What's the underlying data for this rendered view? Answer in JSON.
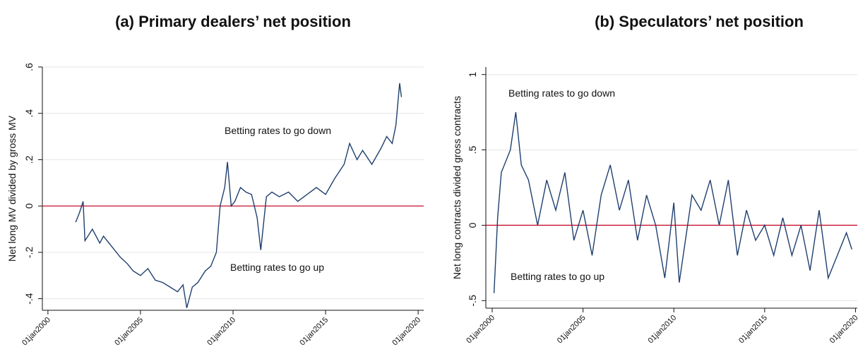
{
  "chart_data": [
    {
      "type": "line",
      "title": "(a) Primary dealers’ net position",
      "y_label": "Net long MV divided by gross MV",
      "annotations": [
        "Betting rates to go down",
        "Betting rates to go up"
      ],
      "hline": 0,
      "hline_color": "#c8102e",
      "xlim": [
        1999.7,
        2020.3
      ],
      "xticks": [
        {
          "value": 2000,
          "label": "01jan2000"
        },
        {
          "value": 2005,
          "label": "01jan2005"
        },
        {
          "value": 2010,
          "label": "01jan2010"
        },
        {
          "value": 2015,
          "label": "01jan2015"
        },
        {
          "value": 2020,
          "label": "01jan2020"
        }
      ],
      "ylim": [
        -0.45,
        0.6
      ],
      "yticks": [
        {
          "value": -0.4,
          "label": "-.4"
        },
        {
          "value": -0.2,
          "label": "-.2"
        },
        0,
        {
          "value": 0.2,
          "label": ".2"
        },
        {
          "value": 0.4,
          "label": ".4"
        },
        {
          "value": 0.6,
          "label": ".6"
        }
      ],
      "grid": true,
      "series": [
        {
          "color": "#1f3f6e",
          "x": [
            2001.5,
            2001.7,
            2001.9,
            2002.0,
            2002.4,
            2002.8,
            2003.0,
            2003.5,
            2003.9,
            2004.3,
            2004.6,
            2005.0,
            2005.4,
            2005.8,
            2006.2,
            2006.6,
            2007.0,
            2007.3,
            2007.5,
            2007.8,
            2008.1,
            2008.5,
            2008.8,
            2009.1,
            2009.3,
            2009.55,
            2009.7,
            2009.9,
            2010.1,
            2010.4,
            2010.7,
            2011.0,
            2011.3,
            2011.5,
            2011.8,
            2012.1,
            2012.5,
            2013.0,
            2013.5,
            2014.0,
            2014.5,
            2015.0,
            2015.5,
            2016.0,
            2016.3,
            2016.7,
            2017.0,
            2017.5,
            2018.0,
            2018.3,
            2018.6,
            2018.8,
            2019.0,
            2019.1
          ],
          "values": [
            -0.07,
            -0.03,
            0.02,
            -0.15,
            -0.1,
            -0.16,
            -0.13,
            -0.18,
            -0.22,
            -0.25,
            -0.28,
            -0.3,
            -0.27,
            -0.32,
            -0.33,
            -0.35,
            -0.37,
            -0.34,
            -0.44,
            -0.35,
            -0.33,
            -0.28,
            -0.26,
            -0.2,
            0.0,
            0.08,
            0.19,
            0.0,
            0.02,
            0.08,
            0.06,
            0.05,
            -0.05,
            -0.19,
            0.04,
            0.06,
            0.04,
            0.06,
            0.02,
            0.05,
            0.08,
            0.05,
            0.12,
            0.18,
            0.27,
            0.2,
            0.24,
            0.18,
            0.25,
            0.3,
            0.27,
            0.35,
            0.53,
            0.47
          ]
        }
      ]
    },
    {
      "type": "line",
      "title": "(b) Speculators’ net position",
      "y_label": "Net long contracts divided gross contracts",
      "annotations": [
        "Betting rates to go down",
        "Betting rates to go up"
      ],
      "hline": 0,
      "hline_color": "#c8102e",
      "xlim": [
        1999.65,
        2020.1
      ],
      "xticks": [
        {
          "value": 2000,
          "label": "01jan2000"
        },
        {
          "value": 2005,
          "label": "01jan2005"
        },
        {
          "value": 2010,
          "label": "01jan2010"
        },
        {
          "value": 2015,
          "label": "01jan2015"
        },
        {
          "value": 2020,
          "label": "01jan2020"
        }
      ],
      "ylim": [
        -0.55,
        1.05
      ],
      "yticks": [
        {
          "value": -0.5,
          "label": "-.5"
        },
        0,
        {
          "value": 0.5,
          "label": ".5"
        },
        1
      ],
      "grid": true,
      "series": [
        {
          "color": "#1f3f6e",
          "x": [
            2000.1,
            2000.3,
            2000.5,
            2001.0,
            2001.3,
            2001.6,
            2002.0,
            2002.5,
            2003.0,
            2003.5,
            2004.0,
            2004.5,
            2005.0,
            2005.5,
            2006.0,
            2006.5,
            2007.0,
            2007.5,
            2008.0,
            2008.5,
            2009.0,
            2009.5,
            2010.0,
            2010.3,
            2011.0,
            2011.5,
            2012.0,
            2012.5,
            2013.0,
            2013.5,
            2014.0,
            2014.5,
            2015.0,
            2015.5,
            2016.0,
            2016.5,
            2017.0,
            2017.5,
            2018.0,
            2018.5,
            2019.0,
            2019.5,
            2019.8
          ],
          "values": [
            -0.45,
            0.05,
            0.35,
            0.5,
            0.75,
            0.4,
            0.3,
            0.0,
            0.3,
            0.1,
            0.35,
            -0.1,
            0.1,
            -0.2,
            0.2,
            0.4,
            0.1,
            0.3,
            -0.1,
            0.2,
            0.0,
            -0.35,
            0.15,
            -0.38,
            0.2,
            0.1,
            0.3,
            0.0,
            0.3,
            -0.2,
            0.1,
            -0.1,
            0.0,
            -0.2,
            0.05,
            -0.2,
            0.0,
            -0.3,
            0.1,
            -0.35,
            -0.2,
            -0.05,
            -0.16
          ]
        }
      ]
    }
  ]
}
